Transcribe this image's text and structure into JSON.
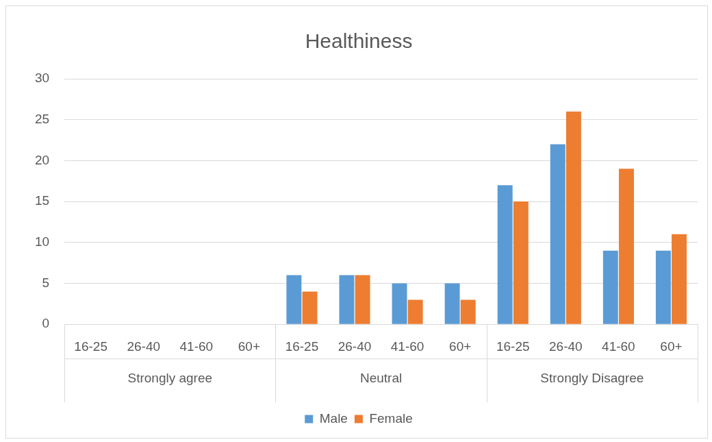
{
  "chart_data": {
    "type": "bar",
    "title": "Healthiness",
    "categories": [
      "16-25",
      "26-40",
      "41-60",
      "60+",
      "16-25",
      "26-40",
      "41-60",
      "60+",
      "16-25",
      "26-40",
      "41-60",
      "60+"
    ],
    "series": [
      {
        "name": "Male",
        "color": "#5b9bd5",
        "values": [
          0,
          0,
          0,
          0,
          6,
          6,
          5,
          5,
          17,
          22,
          9,
          9
        ]
      },
      {
        "name": "Female",
        "color": "#ed7d31",
        "values": [
          0,
          0,
          0,
          0,
          4,
          6,
          3,
          3,
          15,
          26,
          19,
          11
        ]
      }
    ],
    "annotations": [
      "Strongly agree",
      "Neutral",
      "Strongly Disagree"
    ],
    "ylim": [
      0,
      30
    ],
    "yticks": [
      0,
      5,
      10,
      15,
      20,
      25,
      30
    ],
    "grid": "y",
    "legend": "bottom"
  }
}
